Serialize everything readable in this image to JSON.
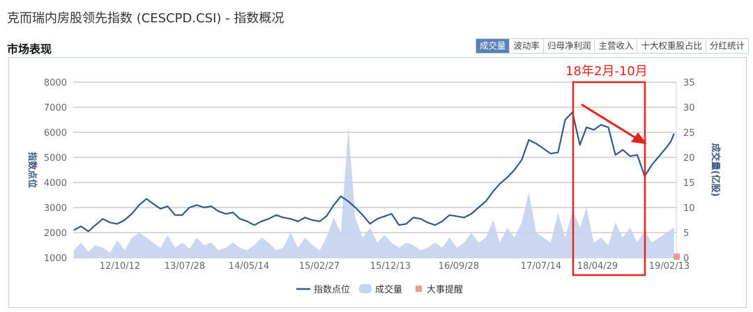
{
  "header": {
    "title": "克而瑞内房股领先指数 (CESCPD.CSI) - 指数概况",
    "section": "市场表现"
  },
  "tabs": [
    {
      "label": "成交量",
      "active": true
    },
    {
      "label": "波动率"
    },
    {
      "label": "归母净利润"
    },
    {
      "label": "主营收入"
    },
    {
      "label": "十大权重股占比"
    },
    {
      "label": "分红统计"
    }
  ],
  "colors": {
    "line": "#2f5a8c",
    "volume": "#c5d3ee",
    "event": "#e89a9a",
    "annotation": "#e8231e",
    "grid": "#cccccc"
  },
  "chart_data": {
    "type": "line",
    "ylabel": "指数点位",
    "y2label": "成交量(亿股)",
    "ylim": [
      1000,
      8000
    ],
    "yticks": [
      1000,
      2000,
      3000,
      4000,
      5000,
      6000,
      7000,
      8000
    ],
    "y2lim": [
      0,
      35
    ],
    "y2ticks": [
      0,
      5,
      10,
      15,
      20,
      25,
      30,
      35
    ],
    "xticks": [
      "12/10/12",
      "13/07/28",
      "14/05/14",
      "15/02/27",
      "15/12/13",
      "16/09/28",
      "17/07/14",
      "18/04/29",
      "19/02/13"
    ],
    "grid": true,
    "legend_position": "bottom",
    "legend": [
      "指数点位",
      "成交量",
      "大事提醒"
    ],
    "annotation": {
      "text": "18年2月-10月",
      "from": "2018-02",
      "to": "2018-10"
    },
    "series": [
      {
        "name": "指数点位",
        "type": "line",
        "points": [
          [
            "2012-04-01",
            2100
          ],
          [
            "2012-05-01",
            2250
          ],
          [
            "2012-06-01",
            2050
          ],
          [
            "2012-07-01",
            2300
          ],
          [
            "2012-08-01",
            2550
          ],
          [
            "2012-09-01",
            2400
          ],
          [
            "2012-10-01",
            2350
          ],
          [
            "2012-11-01",
            2500
          ],
          [
            "2012-12-01",
            2750
          ],
          [
            "2013-01-01",
            3100
          ],
          [
            "2013-02-01",
            3350
          ],
          [
            "2013-03-01",
            3150
          ],
          [
            "2013-04-01",
            2950
          ],
          [
            "2013-05-01",
            3050
          ],
          [
            "2013-06-01",
            2700
          ],
          [
            "2013-07-01",
            2700
          ],
          [
            "2013-08-01",
            3000
          ],
          [
            "2013-09-01",
            3100
          ],
          [
            "2013-10-01",
            3000
          ],
          [
            "2013-11-01",
            3050
          ],
          [
            "2013-12-01",
            2850
          ],
          [
            "2014-01-01",
            2750
          ],
          [
            "2014-02-01",
            2800
          ],
          [
            "2014-03-01",
            2550
          ],
          [
            "2014-04-01",
            2450
          ],
          [
            "2014-05-01",
            2300
          ],
          [
            "2014-06-01",
            2450
          ],
          [
            "2014-07-01",
            2550
          ],
          [
            "2014-08-01",
            2700
          ],
          [
            "2014-09-01",
            2600
          ],
          [
            "2014-10-01",
            2550
          ],
          [
            "2014-11-01",
            2450
          ],
          [
            "2014-12-01",
            2600
          ],
          [
            "2015-01-01",
            2500
          ],
          [
            "2015-02-01",
            2450
          ],
          [
            "2015-03-01",
            2650
          ],
          [
            "2015-04-01",
            3100
          ],
          [
            "2015-05-01",
            3450
          ],
          [
            "2015-06-01",
            3250
          ],
          [
            "2015-07-01",
            3000
          ],
          [
            "2015-08-01",
            2700
          ],
          [
            "2015-09-01",
            2350
          ],
          [
            "2015-10-01",
            2550
          ],
          [
            "2015-11-01",
            2650
          ],
          [
            "2015-12-01",
            2750
          ],
          [
            "2016-01-01",
            2300
          ],
          [
            "2016-02-01",
            2350
          ],
          [
            "2016-03-01",
            2600
          ],
          [
            "2016-04-01",
            2550
          ],
          [
            "2016-05-01",
            2400
          ],
          [
            "2016-06-01",
            2300
          ],
          [
            "2016-07-01",
            2450
          ],
          [
            "2016-08-01",
            2700
          ],
          [
            "2016-09-01",
            2650
          ],
          [
            "2016-10-01",
            2600
          ],
          [
            "2016-11-01",
            2750
          ],
          [
            "2016-12-01",
            3000
          ],
          [
            "2017-01-01",
            3250
          ],
          [
            "2017-02-01",
            3650
          ],
          [
            "2017-03-01",
            3950
          ],
          [
            "2017-04-01",
            4200
          ],
          [
            "2017-05-01",
            4500
          ],
          [
            "2017-06-01",
            4900
          ],
          [
            "2017-07-01",
            5700
          ],
          [
            "2017-08-01",
            5550
          ],
          [
            "2017-09-01",
            5350
          ],
          [
            "2017-10-01",
            5150
          ],
          [
            "2017-11-01",
            5200
          ],
          [
            "2017-12-01",
            6500
          ],
          [
            "2018-01-01",
            6800
          ],
          [
            "2018-02-01",
            5500
          ],
          [
            "2018-03-01",
            6200
          ],
          [
            "2018-04-01",
            6100
          ],
          [
            "2018-05-01",
            6300
          ],
          [
            "2018-06-01",
            6200
          ],
          [
            "2018-07-01",
            5100
          ],
          [
            "2018-08-01",
            5300
          ],
          [
            "2018-09-01",
            5050
          ],
          [
            "2018-10-01",
            5100
          ],
          [
            "2018-11-01",
            4250
          ],
          [
            "2018-12-01",
            4700
          ],
          [
            "2019-01-01",
            5050
          ],
          [
            "2019-02-01",
            5400
          ],
          [
            "2019-02-20",
            5650
          ],
          [
            "2019-03-05",
            5950
          ]
        ]
      },
      {
        "name": "成交量",
        "type": "area",
        "axis": "right",
        "points": [
          [
            "2012-04-01",
            1.5
          ],
          [
            "2012-05-01",
            3
          ],
          [
            "2012-06-01",
            1.2
          ],
          [
            "2012-07-01",
            2.5
          ],
          [
            "2012-08-01",
            2
          ],
          [
            "2012-09-01",
            1
          ],
          [
            "2012-10-01",
            3.5
          ],
          [
            "2012-11-01",
            1.5
          ],
          [
            "2012-12-01",
            4
          ],
          [
            "2013-01-01",
            5
          ],
          [
            "2013-02-01",
            4
          ],
          [
            "2013-03-01",
            3
          ],
          [
            "2013-04-01",
            2
          ],
          [
            "2013-05-01",
            4.5
          ],
          [
            "2013-06-01",
            2
          ],
          [
            "2013-07-01",
            3
          ],
          [
            "2013-08-01",
            1.8
          ],
          [
            "2013-09-01",
            4
          ],
          [
            "2013-10-01",
            2.5
          ],
          [
            "2013-11-01",
            3
          ],
          [
            "2013-12-01",
            1.5
          ],
          [
            "2014-01-01",
            2
          ],
          [
            "2014-02-01",
            3
          ],
          [
            "2014-03-01",
            2
          ],
          [
            "2014-04-01",
            1.5
          ],
          [
            "2014-05-01",
            2.5
          ],
          [
            "2014-06-01",
            4
          ],
          [
            "2014-07-01",
            3
          ],
          [
            "2014-08-01",
            1.5
          ],
          [
            "2014-09-01",
            2
          ],
          [
            "2014-10-01",
            5
          ],
          [
            "2014-11-01",
            2
          ],
          [
            "2014-12-01",
            4
          ],
          [
            "2015-01-01",
            2.5
          ],
          [
            "2015-02-01",
            1.5
          ],
          [
            "2015-03-01",
            4
          ],
          [
            "2015-04-01",
            8
          ],
          [
            "2015-05-01",
            5
          ],
          [
            "2015-06-01",
            26
          ],
          [
            "2015-07-01",
            8
          ],
          [
            "2015-08-01",
            4
          ],
          [
            "2015-09-01",
            6
          ],
          [
            "2015-10-01",
            3
          ],
          [
            "2015-11-01",
            4.5
          ],
          [
            "2015-12-01",
            3
          ],
          [
            "2016-01-01",
            2
          ],
          [
            "2016-02-01",
            3
          ],
          [
            "2016-03-01",
            2.5
          ],
          [
            "2016-04-01",
            1.5
          ],
          [
            "2016-05-01",
            2
          ],
          [
            "2016-06-01",
            3
          ],
          [
            "2016-07-01",
            2
          ],
          [
            "2016-08-01",
            4
          ],
          [
            "2016-09-01",
            2
          ],
          [
            "2016-10-01",
            3
          ],
          [
            "2016-11-01",
            5
          ],
          [
            "2016-12-01",
            3
          ],
          [
            "2017-01-01",
            4
          ],
          [
            "2017-02-01",
            7.5
          ],
          [
            "2017-03-01",
            3
          ],
          [
            "2017-04-01",
            6
          ],
          [
            "2017-05-01",
            4
          ],
          [
            "2017-06-01",
            7
          ],
          [
            "2017-07-01",
            13
          ],
          [
            "2017-08-01",
            5
          ],
          [
            "2017-09-01",
            4
          ],
          [
            "2017-10-01",
            3
          ],
          [
            "2017-11-01",
            9
          ],
          [
            "2017-12-01",
            4
          ],
          [
            "2018-01-01",
            9.5
          ],
          [
            "2018-02-01",
            6
          ],
          [
            "2018-03-01",
            10
          ],
          [
            "2018-04-01",
            3
          ],
          [
            "2018-05-01",
            4
          ],
          [
            "2018-06-01",
            2.5
          ],
          [
            "2018-07-01",
            7
          ],
          [
            "2018-08-01",
            4
          ],
          [
            "2018-09-01",
            6
          ],
          [
            "2018-10-01",
            3
          ],
          [
            "2018-11-01",
            5.5
          ],
          [
            "2018-12-01",
            3
          ],
          [
            "2019-01-01",
            4
          ],
          [
            "2019-02-01",
            5
          ],
          [
            "2019-03-05",
            6
          ]
        ]
      }
    ]
  }
}
